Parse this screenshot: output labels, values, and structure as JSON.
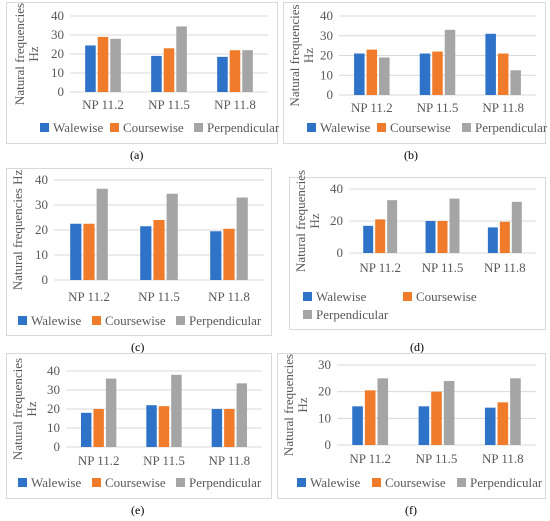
{
  "colors": {
    "Walewise": "#2f73c8",
    "Coursewise": "#f07c2b",
    "Perpendicular": "#a5a5a5"
  },
  "chart_data": [
    {
      "type": "bar",
      "label": "a",
      "caption": "(a)",
      "ylabel": "Natural frequencies Hz",
      "yticks": [
        0,
        10,
        20,
        30,
        40
      ],
      "ylim": [
        0,
        40
      ],
      "categories": [
        "NP 11.2",
        "NP 11.5",
        "NP 11.8"
      ],
      "legend_position": "bottom",
      "series": [
        {
          "name": "Walewise",
          "values": [
            24.5,
            19,
            18.5
          ]
        },
        {
          "name": "Coursewise",
          "values": [
            29,
            23,
            22
          ]
        },
        {
          "name": "Perpendicular",
          "values": [
            28,
            34.5,
            22
          ]
        }
      ]
    },
    {
      "type": "bar",
      "label": "b",
      "caption": "(b)",
      "ylabel": "Natural frequencies Hz",
      "yticks": [
        0,
        10,
        20,
        30,
        40
      ],
      "ylim": [
        0,
        40
      ],
      "categories": [
        "NP 11.2",
        "NP 11.5",
        "NP 11.8"
      ],
      "legend_position": "bottom",
      "series": [
        {
          "name": "Walewise",
          "values": [
            21,
            21,
            31
          ]
        },
        {
          "name": "Coursewise",
          "values": [
            23,
            22,
            21
          ]
        },
        {
          "name": "Perpendicular",
          "values": [
            19,
            33,
            12.5
          ]
        }
      ]
    },
    {
      "type": "bar",
      "label": "c",
      "caption": "(c)",
      "ylabel": "Natural frequencies Hz",
      "yticks": [
        0,
        10,
        20,
        30,
        40
      ],
      "ylim": [
        0,
        40
      ],
      "categories": [
        "NP 11.2",
        "NP 11.5",
        "NP 11.8"
      ],
      "legend_position": "bottom",
      "series": [
        {
          "name": "Walewise",
          "values": [
            22.5,
            21.5,
            19.5
          ]
        },
        {
          "name": "Coursewise",
          "values": [
            22.5,
            24,
            20.5
          ]
        },
        {
          "name": "Perpendicular",
          "values": [
            36.5,
            34.5,
            33
          ]
        }
      ]
    },
    {
      "type": "bar",
      "label": "d",
      "caption": "(d)",
      "ylabel": "Natural frequencies Hz",
      "yticks": [
        0,
        20,
        40
      ],
      "ylim": [
        0,
        40
      ],
      "categories": [
        "NP 11.2",
        "NP 11.5",
        "NP 11.8"
      ],
      "legend_position": "bottom",
      "series": [
        {
          "name": "Walewise",
          "values": [
            17,
            20,
            16
          ]
        },
        {
          "name": "Coursewise",
          "values": [
            21,
            20,
            19.5
          ]
        },
        {
          "name": "Perpendicular",
          "values": [
            33,
            34,
            32
          ]
        }
      ]
    },
    {
      "type": "bar",
      "label": "e",
      "caption": "(e)",
      "ylabel": "Natural frequencies Hz",
      "yticks": [
        0,
        10,
        20,
        30,
        40
      ],
      "ylim": [
        0,
        40
      ],
      "categories": [
        "NP 11.2",
        "NP 11.5",
        "NP 11.8"
      ],
      "legend_position": "bottom",
      "series": [
        {
          "name": "Walewise",
          "values": [
            18,
            22,
            20
          ]
        },
        {
          "name": "Coursewise",
          "values": [
            20,
            21.5,
            20
          ]
        },
        {
          "name": "Perpendicular",
          "values": [
            36,
            38,
            33.5
          ]
        }
      ]
    },
    {
      "type": "bar",
      "label": "f",
      "caption": "(f)",
      "ylabel": "Natural frequencies Hz",
      "yticks": [
        0,
        10,
        20,
        30
      ],
      "ylim": [
        0,
        30
      ],
      "categories": [
        "NP 11.2",
        "NP 11.5",
        "NP 11.8"
      ],
      "legend_position": "bottom",
      "series": [
        {
          "name": "Walewise",
          "values": [
            14.5,
            14.5,
            14
          ]
        },
        {
          "name": "Coursewise",
          "values": [
            20.5,
            20,
            16
          ]
        },
        {
          "name": "Perpendicular",
          "values": [
            25,
            24,
            25
          ]
        }
      ]
    }
  ]
}
